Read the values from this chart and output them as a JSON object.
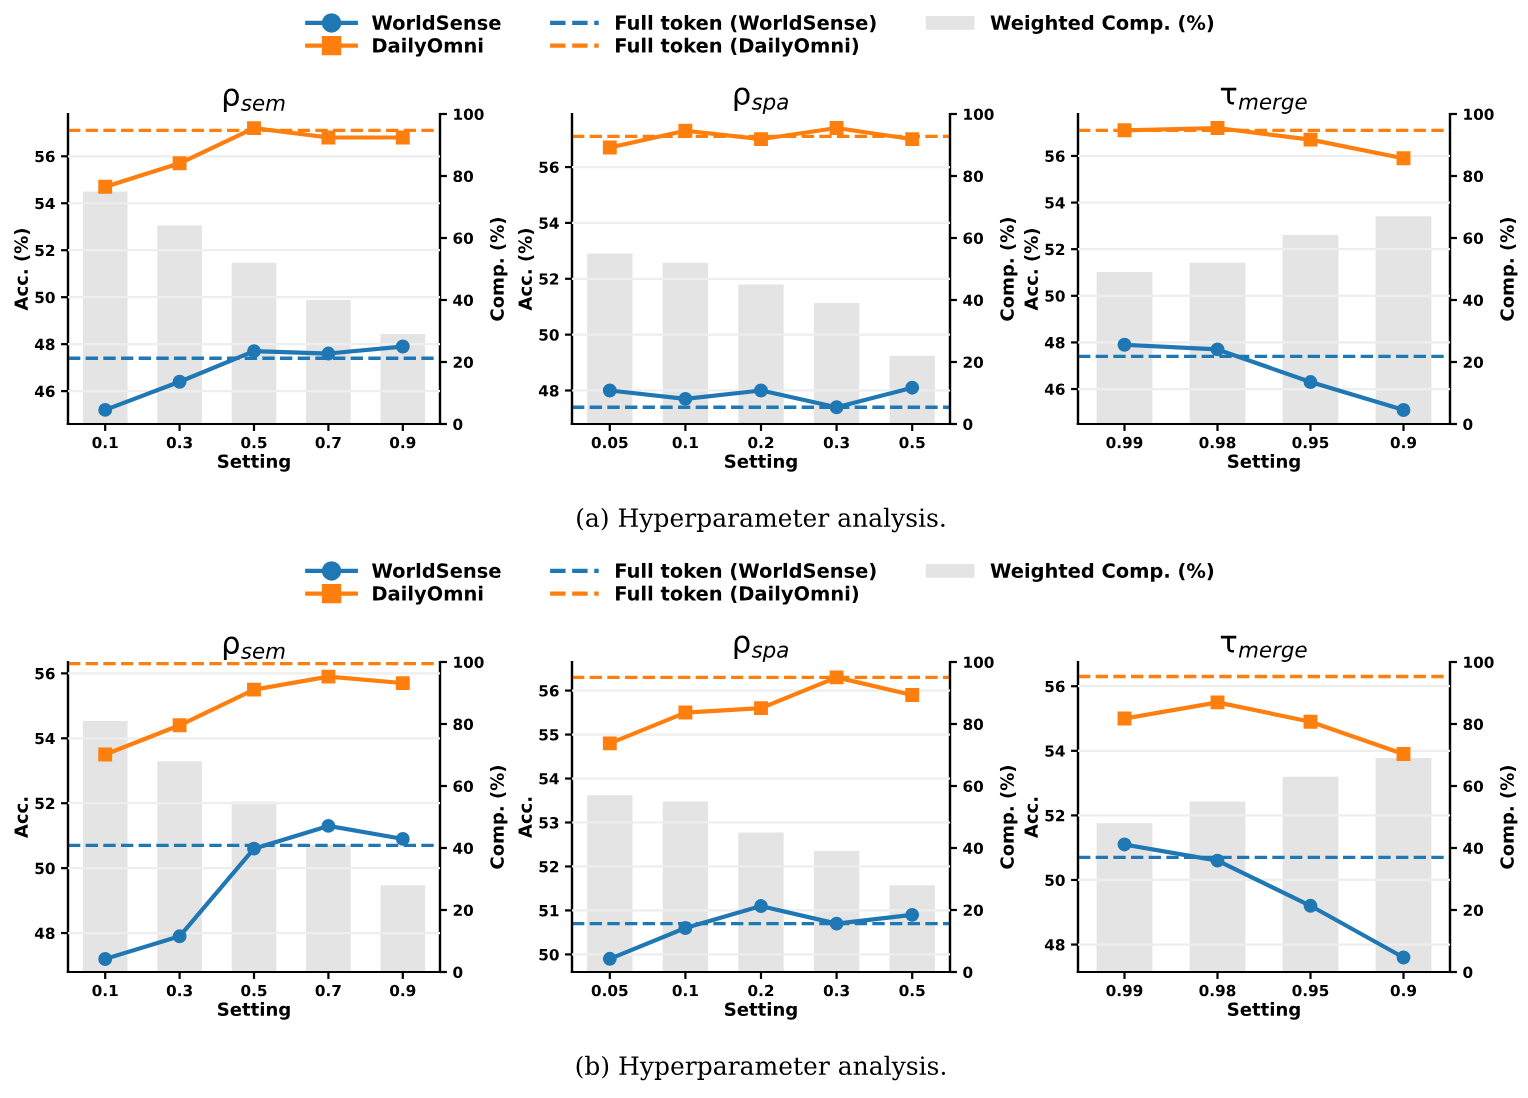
{
  "chart_data": [
    {
      "type": "line",
      "title": "ρ$_{sem}$",
      "xlabel": "Setting",
      "ylabel": "Acc. (%)",
      "y2label": "Comp. (%)",
      "categories": [
        "0.1",
        "0.3",
        "0.5",
        "0.7",
        "0.9"
      ],
      "ylim": [
        44.6,
        57.8
      ],
      "yticks": [
        46,
        48,
        50,
        52,
        54,
        56
      ],
      "y2lim": [
        0,
        100
      ],
      "y2ticks": [
        0,
        20,
        40,
        60,
        80,
        100
      ],
      "grid": "y",
      "series": [
        {
          "color": "#1f77b4",
          "marker": "circle",
          "values": [
            45.2,
            46.4,
            47.7,
            47.6,
            47.9
          ]
        },
        {
          "color": "#ff7f0e",
          "marker": "square",
          "values": [
            54.7,
            55.7,
            57.2,
            56.8,
            56.8
          ]
        },
        {
          "type": "bar",
          "axis": "y2",
          "color": "#dddddd",
          "values": [
            75,
            64,
            52,
            40,
            29
          ]
        }
      ],
      "ref_lines": [
        {
          "axis": "y",
          "value": 47.4,
          "color": "#1f77b4",
          "line_style": "dashed"
        },
        {
          "axis": "y",
          "value": 57.1,
          "color": "#ff7f0e",
          "line_style": "dashed"
        }
      ]
    },
    {
      "type": "line",
      "title": "ρ$_{spa}$",
      "xlabel": "Setting",
      "ylabel": "Acc. (%)",
      "y2label": "Comp. (%)",
      "categories": [
        "0.05",
        "0.1",
        "0.2",
        "0.3",
        "0.5"
      ],
      "ylim": [
        46.8,
        57.9
      ],
      "yticks": [
        48,
        50,
        52,
        54,
        56
      ],
      "y2lim": [
        0,
        100
      ],
      "y2ticks": [
        0,
        20,
        40,
        60,
        80,
        100
      ],
      "grid": "y",
      "legend": "top",
      "annotations": [
        "(a) Hyperparameter analysis."
      ],
      "series": [
        {
          "name": "WorldSense",
          "color": "#1f77b4",
          "marker": "circle",
          "values": [
            48.0,
            47.7,
            48.0,
            47.4,
            48.1
          ]
        },
        {
          "name": "DailyOmni",
          "color": "#ff7f0e",
          "marker": "square",
          "values": [
            56.7,
            57.3,
            57.0,
            57.4,
            57.0
          ]
        },
        {
          "name": "Weighted Comp. (%)",
          "type": "bar",
          "axis": "y2",
          "color": "#dddddd",
          "values": [
            55,
            52,
            45,
            39,
            22
          ]
        }
      ],
      "ref_lines": [
        {
          "axis": "y",
          "value": 47.4,
          "label": "Full token (WorldSense)",
          "color": "#1f77b4",
          "line_style": "dashed"
        },
        {
          "axis": "y",
          "value": 57.1,
          "label": "Full token (DailyOmni)",
          "color": "#ff7f0e",
          "line_style": "dashed"
        }
      ]
    },
    {
      "type": "line",
      "title": "τ$_{merge}$",
      "xlabel": "Setting",
      "ylabel": "Acc. (%)",
      "y2label": "Comp. (%)",
      "categories": [
        "0.99",
        "0.98",
        "0.95",
        "0.9"
      ],
      "ylim": [
        44.5,
        57.8
      ],
      "yticks": [
        46,
        48,
        50,
        52,
        54,
        56
      ],
      "y2lim": [
        0,
        100
      ],
      "y2ticks": [
        0,
        20,
        40,
        60,
        80,
        100
      ],
      "grid": "y",
      "series": [
        {
          "color": "#1f77b4",
          "marker": "circle",
          "values": [
            47.9,
            47.7,
            46.3,
            45.1
          ]
        },
        {
          "color": "#ff7f0e",
          "marker": "square",
          "values": [
            57.1,
            57.2,
            56.7,
            55.9
          ]
        },
        {
          "type": "bar",
          "axis": "y2",
          "color": "#dddddd",
          "values": [
            49,
            52,
            61,
            67
          ]
        }
      ],
      "ref_lines": [
        {
          "axis": "y",
          "value": 47.4,
          "color": "#1f77b4",
          "line_style": "dashed"
        },
        {
          "axis": "y",
          "value": 57.1,
          "color": "#ff7f0e",
          "line_style": "dashed"
        }
      ]
    },
    {
      "type": "line",
      "title": "ρ$_{sem}$",
      "xlabel": "Setting",
      "ylabel": "Acc.",
      "y2label": "Comp. (%)",
      "categories": [
        "0.1",
        "0.3",
        "0.5",
        "0.7",
        "0.9"
      ],
      "ylim": [
        46.8,
        56.35
      ],
      "yticks": [
        48,
        50,
        52,
        54,
        56
      ],
      "y2lim": [
        0,
        100
      ],
      "y2ticks": [
        0,
        20,
        40,
        60,
        80,
        100
      ],
      "grid": "y",
      "series": [
        {
          "color": "#1f77b4",
          "marker": "circle",
          "values": [
            47.2,
            47.9,
            50.6,
            51.3,
            50.9
          ]
        },
        {
          "color": "#ff7f0e",
          "marker": "square",
          "values": [
            53.5,
            54.4,
            55.5,
            55.9,
            55.7
          ]
        },
        {
          "type": "bar",
          "axis": "y2",
          "color": "#dddddd",
          "values": [
            81,
            68,
            55,
            41,
            28
          ]
        }
      ],
      "ref_lines": [
        {
          "axis": "y",
          "value": 50.7,
          "color": "#1f77b4",
          "line_style": "dashed"
        },
        {
          "axis": "y",
          "value": 56.3,
          "color": "#ff7f0e",
          "line_style": "dashed"
        }
      ]
    },
    {
      "type": "line",
      "title": "ρ$_{spa}$",
      "xlabel": "Setting",
      "ylabel": "Acc.",
      "y2label": "Comp. (%)",
      "categories": [
        "0.05",
        "0.1",
        "0.2",
        "0.3",
        "0.5"
      ],
      "ylim": [
        49.6,
        56.65
      ],
      "yticks": [
        50,
        51,
        52,
        53,
        54,
        55,
        56
      ],
      "y2lim": [
        0,
        100
      ],
      "y2ticks": [
        0,
        20,
        40,
        60,
        80,
        100
      ],
      "grid": "y",
      "legend": "top",
      "annotations": [
        "(b) Hyperparameter analysis."
      ],
      "series": [
        {
          "name": "WorldSense",
          "color": "#1f77b4",
          "marker": "circle",
          "values": [
            49.9,
            50.6,
            51.1,
            50.7,
            50.9
          ]
        },
        {
          "name": "DailyOmni",
          "color": "#ff7f0e",
          "marker": "square",
          "values": [
            54.8,
            55.5,
            55.6,
            56.3,
            55.9
          ]
        },
        {
          "name": "Weighted Comp. (%)",
          "type": "bar",
          "axis": "y2",
          "color": "#dddddd",
          "values": [
            57,
            55,
            45,
            39,
            28
          ]
        }
      ],
      "ref_lines": [
        {
          "axis": "y",
          "value": 50.7,
          "label": "Full token (WorldSense)",
          "color": "#1f77b4",
          "line_style": "dashed"
        },
        {
          "axis": "y",
          "value": 56.3,
          "label": "Full token (DailyOmni)",
          "color": "#ff7f0e",
          "line_style": "dashed"
        }
      ]
    },
    {
      "type": "line",
      "title": "τ$_{merge}$",
      "xlabel": "Setting",
      "ylabel": "Acc.",
      "y2label": "Comp. (%)",
      "categories": [
        "0.99",
        "0.98",
        "0.95",
        "0.9"
      ],
      "ylim": [
        47.15,
        56.75
      ],
      "yticks": [
        48,
        50,
        52,
        54,
        56
      ],
      "y2lim": [
        0,
        100
      ],
      "y2ticks": [
        0,
        20,
        40,
        60,
        80,
        100
      ],
      "grid": "y",
      "series": [
        {
          "color": "#1f77b4",
          "marker": "circle",
          "values": [
            51.1,
            50.6,
            49.2,
            47.6
          ]
        },
        {
          "color": "#ff7f0e",
          "marker": "square",
          "values": [
            55.0,
            55.5,
            54.9,
            53.9
          ]
        },
        {
          "type": "bar",
          "axis": "y2",
          "color": "#dddddd",
          "values": [
            48,
            55,
            63,
            69
          ]
        }
      ],
      "ref_lines": [
        {
          "axis": "y",
          "value": 50.7,
          "color": "#1f77b4",
          "line_style": "dashed"
        },
        {
          "axis": "y",
          "value": 56.3,
          "color": "#ff7f0e",
          "line_style": "dashed"
        }
      ]
    }
  ]
}
